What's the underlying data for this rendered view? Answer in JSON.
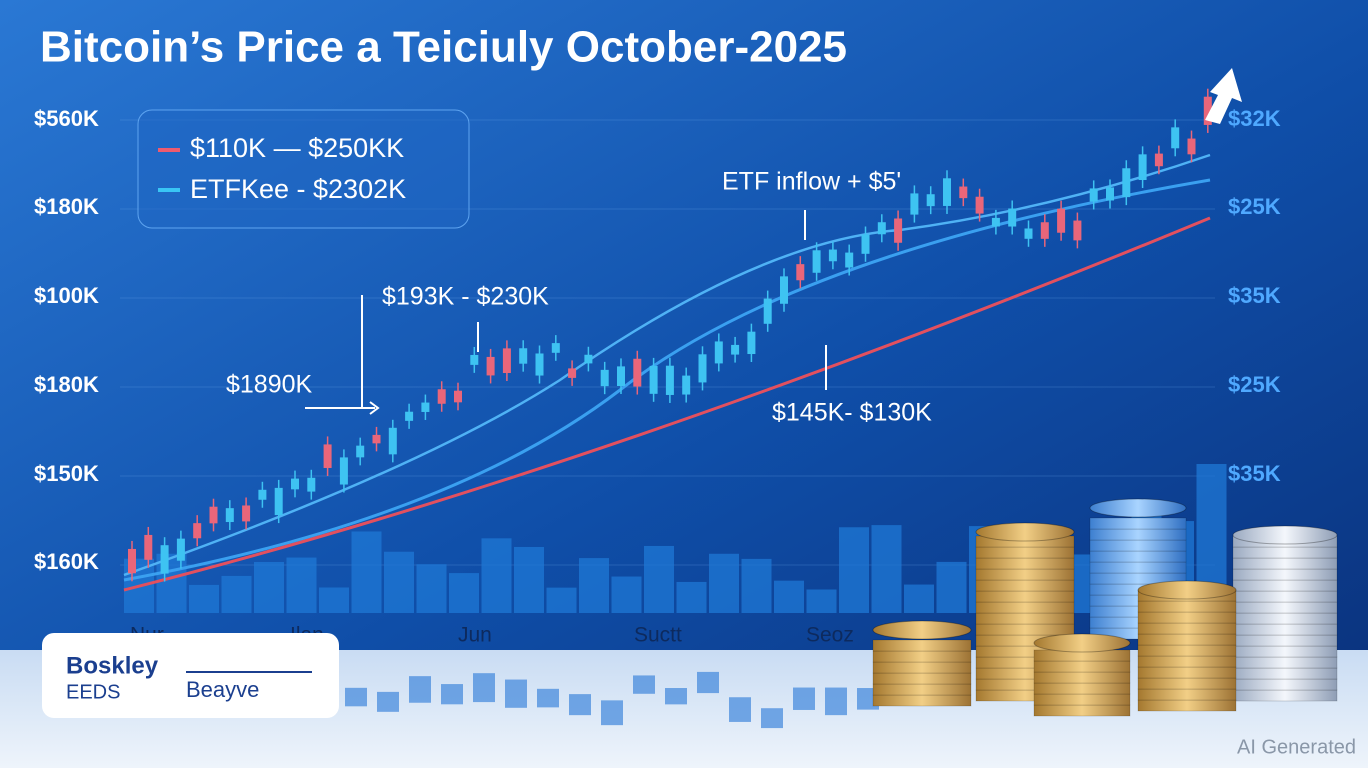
{
  "title": "Bitcoin’s Price a Teiciuly October-2025",
  "left_axis": [
    "$560K",
    "$180K",
    "$100K",
    "$180K",
    "$150K",
    "$160K"
  ],
  "right_axis": [
    "$32K",
    "$25K",
    "$35K",
    "$25K",
    "$35K"
  ],
  "legend": [
    "$110K — $250KK",
    "ETFKee - $2302K"
  ],
  "annotations": [
    "ETF inflow + $5'",
    "$193K - $230K",
    "$1890K",
    "$145K- $130K"
  ],
  "months": [
    "Nur",
    "Ilan",
    "Jun",
    "Suctt",
    "Seoz"
  ],
  "logo": {
    "line1": "Boskley",
    "line2": "EEDS",
    "line3": "Beayve"
  },
  "watermark": "AI Generated"
}
